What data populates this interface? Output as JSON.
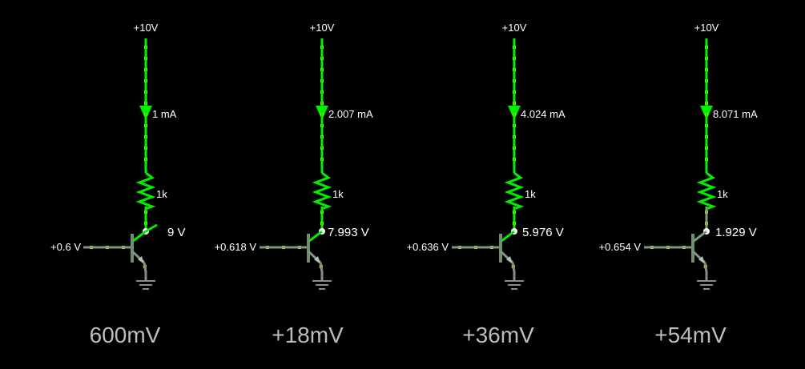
{
  "colors": {
    "background": "#000000",
    "wire_active": "#00ee00",
    "wire_idle": "#7a9a7a",
    "current_dots": "#ffff00",
    "text": "#ffffff",
    "caption": "#bdbdbd",
    "transistor": "#6f8f6f",
    "ground": "#8a8a8a"
  },
  "stages": [
    {
      "supply": "+10V",
      "current": "1 mA",
      "resistor": "1k",
      "collector_voltage": "9 V",
      "base_voltage": "+0.6 V",
      "caption": "600mV"
    },
    {
      "supply": "+10V",
      "current": "2.007 mA",
      "resistor": "1k",
      "collector_voltage": "7.993 V",
      "base_voltage": "+0.618 V",
      "caption": "+18mV"
    },
    {
      "supply": "+10V",
      "current": "4.024 mA",
      "resistor": "1k",
      "collector_voltage": "5.976 V",
      "base_voltage": "+0.636 V",
      "caption": "+36mV"
    },
    {
      "supply": "+10V",
      "current": "8.071 mA",
      "resistor": "1k",
      "collector_voltage": "1.929 V",
      "base_voltage": "+0.654 V",
      "caption": "+54mV"
    }
  ]
}
